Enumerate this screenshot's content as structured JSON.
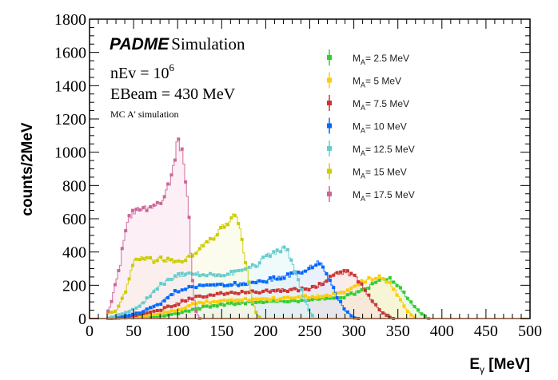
{
  "chart_data": {
    "type": "line",
    "style": "filled step histogram with markers",
    "title": "",
    "xlabel": "E",
    "xlabel_sub": "γ",
    "xlabel_unit": " [MeV]",
    "ylabel": "counts/2MeV",
    "xlim": [
      0,
      500
    ],
    "ylim": [
      0,
      1800
    ],
    "x_ticks": [
      0,
      50,
      100,
      150,
      200,
      250,
      300,
      350,
      400,
      450,
      500
    ],
    "y_ticks": [
      0,
      200,
      400,
      600,
      800,
      1000,
      1200,
      1400,
      1600,
      1800
    ],
    "grid": false,
    "legend_position": "top-right",
    "annotations": {
      "brand": "PADME",
      "brand_suffix": "Simulation",
      "nev_label": "nEv =  10",
      "nev_exp": "6",
      "ebeam": "EBeam = 430 MeV",
      "mc_label": "MC A' simulation"
    },
    "series": [
      {
        "name": "M_A= 2.5 MeV",
        "label_main": "M",
        "label_sub": "A",
        "label_rest": "= 2.5 MeV",
        "color": "#33cc33",
        "fill": "#d8f5d8",
        "x": [
          20,
          40,
          60,
          80,
          100,
          120,
          150,
          180,
          200,
          220,
          250,
          270,
          290,
          300,
          310,
          320,
          330,
          340,
          350,
          360,
          370,
          380,
          385
        ],
        "y": [
          0,
          3,
          8,
          15,
          30,
          60,
          85,
          95,
          100,
          100,
          110,
          120,
          130,
          150,
          170,
          200,
          230,
          240,
          200,
          130,
          60,
          15,
          0
        ]
      },
      {
        "name": "M_A= 5 MeV",
        "label_main": "M",
        "label_sub": "A",
        "label_rest": "= 5 MeV",
        "color": "#ffcc00",
        "fill": "#fff3c4",
        "x": [
          20,
          40,
          60,
          80,
          100,
          120,
          150,
          180,
          200,
          220,
          250,
          270,
          290,
          300,
          310,
          320,
          330,
          340,
          350,
          360,
          370
        ],
        "y": [
          0,
          5,
          15,
          30,
          50,
          90,
          110,
          115,
          115,
          120,
          130,
          140,
          160,
          190,
          220,
          240,
          250,
          220,
          140,
          50,
          0
        ]
      },
      {
        "name": "M_A= 7.5 MeV",
        "label_main": "M",
        "label_sub": "A",
        "label_rest": "= 7.5 MeV",
        "color": "#cc3333",
        "fill": "#f8dddd",
        "x": [
          20,
          40,
          60,
          80,
          100,
          120,
          150,
          180,
          200,
          220,
          250,
          260,
          270,
          280,
          290,
          300,
          310,
          320,
          330,
          340,
          345
        ],
        "y": [
          0,
          8,
          25,
          50,
          90,
          130,
          150,
          160,
          165,
          170,
          180,
          200,
          230,
          270,
          280,
          260,
          190,
          110,
          50,
          10,
          0
        ]
      },
      {
        "name": "M_A= 10 MeV",
        "label_main": "M",
        "label_sub": "A",
        "label_rest": "= 10 MeV",
        "color": "#0066ff",
        "fill": "#dbe6fa",
        "x": [
          20,
          40,
          60,
          80,
          100,
          120,
          150,
          180,
          200,
          220,
          240,
          250,
          260,
          265,
          270,
          280,
          290,
          300,
          305
        ],
        "y": [
          0,
          15,
          40,
          90,
          170,
          190,
          200,
          210,
          230,
          250,
          280,
          310,
          340,
          320,
          260,
          140,
          50,
          5,
          0
        ]
      },
      {
        "name": "M_A= 12.5 MeV",
        "label_main": "M",
        "label_sub": "A",
        "label_rest": "= 12.5 MeV",
        "color": "#66cccc",
        "fill": "#e2f5f5",
        "x": [
          20,
          40,
          60,
          80,
          100,
          120,
          150,
          170,
          190,
          200,
          210,
          220,
          225,
          230,
          240,
          250,
          255
        ],
        "y": [
          0,
          30,
          90,
          200,
          260,
          270,
          260,
          280,
          320,
          370,
          400,
          420,
          400,
          330,
          180,
          40,
          0
        ]
      },
      {
        "name": "M_A= 15 MeV",
        "label_main": "M",
        "label_sub": "A",
        "label_rest": "= 15 MeV",
        "color": "#cccc00",
        "fill": "#fafae0",
        "x": [
          20,
          30,
          40,
          50,
          60,
          70,
          80,
          100,
          110,
          120,
          130,
          140,
          150,
          160,
          165,
          170,
          175,
          180,
          185,
          190,
          195
        ],
        "y": [
          30,
          40,
          150,
          340,
          370,
          350,
          360,
          340,
          360,
          400,
          450,
          480,
          540,
          600,
          640,
          560,
          400,
          250,
          100,
          20,
          0
        ]
      },
      {
        "name": "M_A= 17.5 MeV",
        "label_main": "M",
        "label_sub": "A",
        "label_rest": "= 17.5 MeV",
        "color": "#cc6699",
        "fill": "#f9e4ef",
        "x": [
          20,
          25,
          30,
          35,
          40,
          45,
          50,
          60,
          70,
          80,
          90,
          95,
          100,
          105,
          110,
          113,
          116,
          120,
          125
        ],
        "y": [
          30,
          100,
          220,
          330,
          520,
          600,
          640,
          660,
          670,
          700,
          800,
          900,
          1080,
          1000,
          800,
          600,
          300,
          50,
          0
        ]
      }
    ]
  }
}
